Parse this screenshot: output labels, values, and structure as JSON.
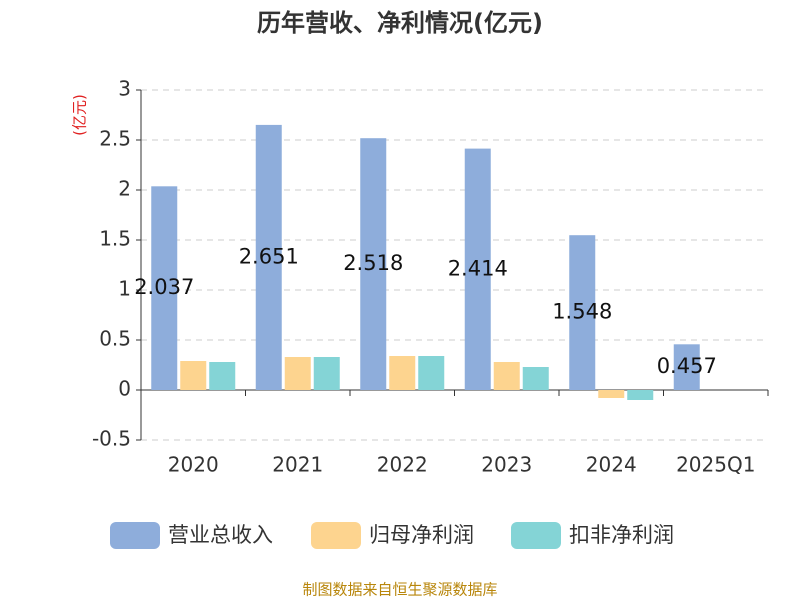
{
  "chart_data": {
    "type": "bar",
    "title": "历年营收、净利情况(亿元)",
    "y_label": "(亿元)",
    "categories": [
      "2020",
      "2021",
      "2022",
      "2023",
      "2024",
      "2025Q1"
    ],
    "series": [
      {
        "name": "营业总收入",
        "color": "#8eaddb",
        "values": [
          2.037,
          2.651,
          2.518,
          2.414,
          1.548,
          0.457
        ]
      },
      {
        "name": "归母净利润",
        "color": "#fdd48f",
        "values": [
          0.29,
          0.33,
          0.34,
          0.28,
          -0.08,
          null
        ]
      },
      {
        "name": "扣非净利润",
        "color": "#84d4d6",
        "values": [
          0.28,
          0.33,
          0.34,
          0.23,
          -0.1,
          null
        ]
      }
    ],
    "ylim": [
      -0.5,
      3
    ],
    "yticks": [
      -0.5,
      0,
      0.5,
      1,
      1.5,
      2,
      2.5,
      3
    ],
    "grid": true,
    "source": "制图数据来自恒生聚源数据库"
  }
}
